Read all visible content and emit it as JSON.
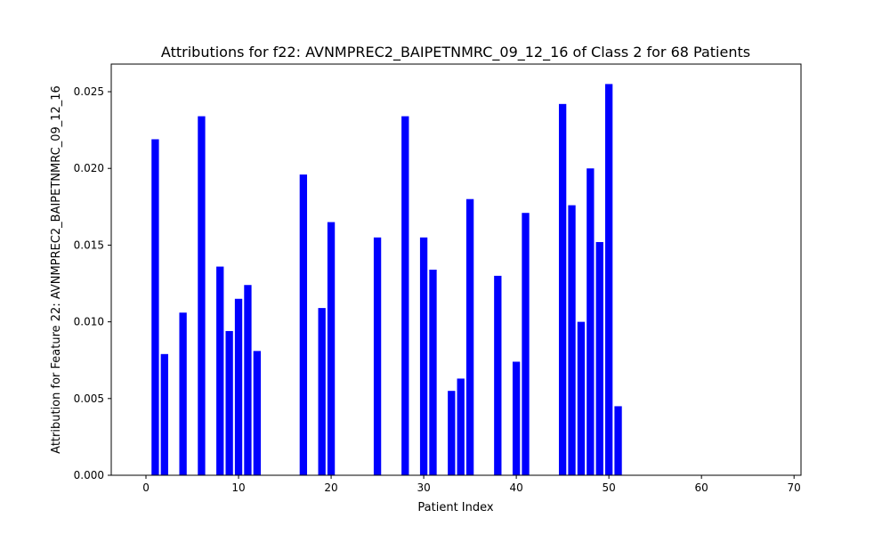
{
  "chart_data": {
    "type": "bar",
    "title": "Attributions for f22: AVNMPREC2_BAIPETNMRC_09_12_16 of Class 2 for 68 Patients",
    "xlabel": "Patient Index",
    "ylabel": "Attribution for Feature 22: AVNMPREC2_BAIPETNMRC_09_12_16",
    "xlim": [
      -3.75,
      70.75
    ],
    "ylim": [
      0,
      0.0268
    ],
    "x_ticks": [
      0,
      10,
      20,
      30,
      40,
      50,
      60,
      70
    ],
    "x_tick_labels": [
      "0",
      "10",
      "20",
      "30",
      "40",
      "50",
      "60",
      "70"
    ],
    "y_ticks": [
      0,
      0.005,
      0.01,
      0.015,
      0.02,
      0.025
    ],
    "y_tick_labels": [
      "0.000",
      "0.005",
      "0.010",
      "0.015",
      "0.020",
      "0.025"
    ],
    "bar_color": "#0000ff",
    "bar_width": 0.8,
    "x": [
      1,
      2,
      4,
      6,
      8,
      9,
      10,
      11,
      12,
      17,
      19,
      20,
      25,
      28,
      30,
      31,
      33,
      34,
      35,
      38,
      40,
      41,
      45,
      46,
      47,
      48,
      49,
      50,
      51
    ],
    "values": [
      0.0219,
      0.0079,
      0.0106,
      0.0234,
      0.0136,
      0.0094,
      0.0115,
      0.0124,
      0.0081,
      0.0196,
      0.0109,
      0.0165,
      0.0155,
      0.0234,
      0.0155,
      0.0134,
      0.0055,
      0.0063,
      0.018,
      0.013,
      0.0074,
      0.0171,
      0.0242,
      0.0176,
      0.01,
      0.02,
      0.0152,
      0.0255,
      0.0045
    ],
    "grid": false
  }
}
